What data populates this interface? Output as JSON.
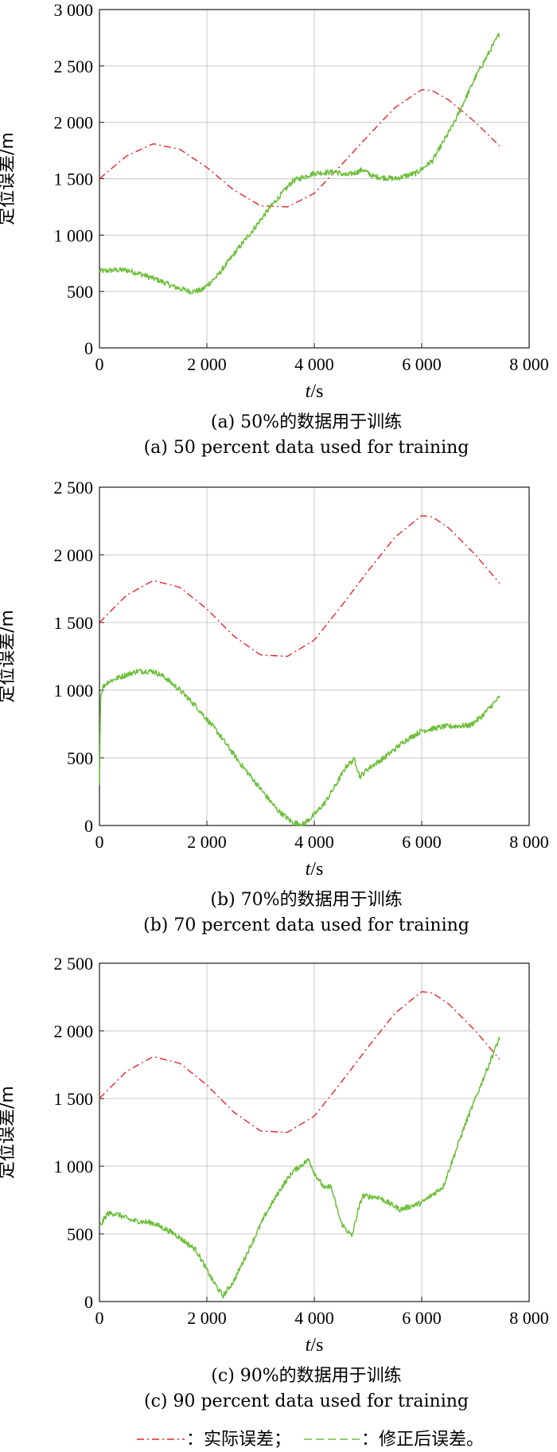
{
  "colors": {
    "actual": "#e0292f",
    "corrected": "#6cbf3a",
    "grid": "#c8c8c8",
    "axis": "#1a1a1a"
  },
  "legend": {
    "actual_label": "：实际误差；",
    "corrected_label": "：修正后误差。"
  },
  "chart_data": [
    {
      "type": "line",
      "caption_cn": "(a) 50%的数据用于训练",
      "caption_en": "(a) 50 percent data used for training",
      "ylabel": "定位误差/m",
      "xlabel_var": "t",
      "xlabel_unit": "/s",
      "xlim": [
        0,
        8000
      ],
      "ylim": [
        0,
        3000
      ],
      "xticks": [
        0,
        2000,
        4000,
        6000,
        8000
      ],
      "xtick_labels": [
        "0",
        "2 000",
        "4 000",
        "6 000",
        "8 000"
      ],
      "yticks": [
        0,
        500,
        1000,
        1500,
        2000,
        2500,
        3000
      ],
      "ytick_labels": [
        "0",
        "500",
        "1 000",
        "1 500",
        "2 000",
        "2 500",
        "3 000"
      ],
      "grid": true,
      "series": [
        {
          "name": "实际误差",
          "style": "dash-dot",
          "x": [
            0,
            500,
            1000,
            1500,
            2000,
            2500,
            3000,
            3500,
            4000,
            4500,
            5000,
            5500,
            6000,
            6200,
            6500,
            7000,
            7450
          ],
          "y": [
            1500,
            1700,
            1810,
            1760,
            1600,
            1400,
            1260,
            1250,
            1370,
            1620,
            1880,
            2130,
            2290,
            2280,
            2200,
            2000,
            1790
          ]
        },
        {
          "name": "修正后误差",
          "style": "solid-noisy",
          "x": [
            0,
            300,
            500,
            800,
            1100,
            1400,
            1700,
            1900,
            2200,
            2500,
            2800,
            3200,
            3600,
            4000,
            4400,
            4600,
            4800,
            4900,
            5100,
            5500,
            5900,
            6200,
            6600,
            7000,
            7450
          ],
          "y": [
            680,
            690,
            690,
            650,
            600,
            540,
            500,
            510,
            640,
            830,
            1010,
            1260,
            1480,
            1550,
            1560,
            1530,
            1560,
            1580,
            1520,
            1500,
            1550,
            1660,
            1990,
            2400,
            2790
          ]
        }
      ]
    },
    {
      "type": "line",
      "caption_cn": "(b) 70%的数据用于训练",
      "caption_en": "(b) 70 percent data used for training",
      "ylabel": "定位误差/m",
      "xlabel_var": "t",
      "xlabel_unit": "/s",
      "xlim": [
        0,
        8000
      ],
      "ylim": [
        0,
        2500
      ],
      "xticks": [
        0,
        2000,
        4000,
        6000,
        8000
      ],
      "xtick_labels": [
        "0",
        "2 000",
        "4 000",
        "6 000",
        "8 000"
      ],
      "yticks": [
        0,
        500,
        1000,
        1500,
        2000,
        2500
      ],
      "ytick_labels": [
        "0",
        "500",
        "1 000",
        "1 500",
        "2 000",
        "2 500"
      ],
      "grid": true,
      "series": [
        {
          "name": "实际误差",
          "style": "dash-dot",
          "x": [
            0,
            500,
            1000,
            1500,
            2000,
            2500,
            3000,
            3500,
            4000,
            4500,
            5000,
            5500,
            6000,
            6200,
            6500,
            7000,
            7450
          ],
          "y": [
            1500,
            1700,
            1810,
            1760,
            1600,
            1400,
            1260,
            1250,
            1370,
            1620,
            1880,
            2130,
            2290,
            2280,
            2200,
            2000,
            1790
          ]
        },
        {
          "name": "修正后误差",
          "style": "solid-noisy",
          "x": [
            0,
            20,
            60,
            150,
            400,
            700,
            1000,
            1200,
            1500,
            1800,
            2200,
            2600,
            3000,
            3300,
            3600,
            3800,
            4000,
            4200,
            4400,
            4600,
            4750,
            4850,
            5000,
            5300,
            5700,
            6000,
            6400,
            6900,
            7100,
            7450
          ],
          "y": [
            300,
            950,
            1020,
            1060,
            1100,
            1140,
            1140,
            1100,
            1000,
            880,
            690,
            470,
            270,
            120,
            20,
            10,
            80,
            170,
            300,
            440,
            490,
            360,
            420,
            500,
            630,
            700,
            730,
            740,
            800,
            950
          ]
        }
      ]
    },
    {
      "type": "line",
      "caption_cn": "(c) 90%的数据用于训练",
      "caption_en": "(c) 90 percent data used for training",
      "ylabel": "定位误差/m",
      "xlabel_var": "t",
      "xlabel_unit": "/s",
      "xlim": [
        0,
        8000
      ],
      "ylim": [
        0,
        2500
      ],
      "xticks": [
        0,
        2000,
        4000,
        6000,
        8000
      ],
      "xtick_labels": [
        "0",
        "2 000",
        "4 000",
        "6 000",
        "8 000"
      ],
      "yticks": [
        0,
        500,
        1000,
        1500,
        2000,
        2500
      ],
      "ytick_labels": [
        "0",
        "500",
        "1 000",
        "1 500",
        "2 000",
        "2 500"
      ],
      "grid": true,
      "series": [
        {
          "name": "实际误差",
          "style": "dash-dot",
          "x": [
            0,
            500,
            1000,
            1500,
            2000,
            2500,
            3000,
            3500,
            4000,
            4500,
            5000,
            5500,
            6000,
            6200,
            6500,
            7000,
            7450
          ],
          "y": [
            1500,
            1700,
            1810,
            1760,
            1600,
            1400,
            1260,
            1250,
            1370,
            1620,
            1880,
            2130,
            2290,
            2280,
            2200,
            2000,
            1790
          ]
        },
        {
          "name": "修正后误差",
          "style": "solid-noisy",
          "x": [
            0,
            150,
            300,
            600,
            1000,
            1400,
            1800,
            2100,
            2300,
            2500,
            2800,
            3100,
            3400,
            3600,
            3900,
            4000,
            4200,
            4300,
            4500,
            4700,
            4800,
            4900,
            5200,
            5600,
            6000,
            6400,
            6800,
            7200,
            7450
          ],
          "y": [
            550,
            650,
            650,
            600,
            580,
            500,
            380,
            160,
            40,
            150,
            400,
            650,
            850,
            960,
            1050,
            950,
            830,
            860,
            580,
            480,
            650,
            780,
            770,
            680,
            730,
            850,
            1300,
            1700,
            1950
          ]
        }
      ]
    }
  ]
}
